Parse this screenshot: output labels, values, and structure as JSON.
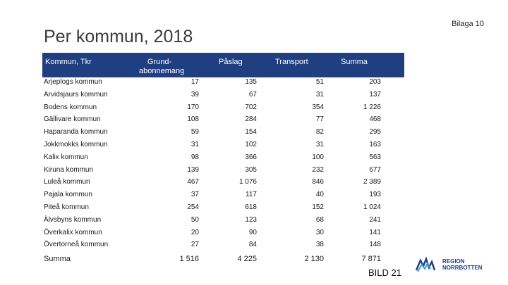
{
  "bilaga": "Bilaga 10",
  "title": "Per kommun, 2018",
  "headers": {
    "kommun": "Kommun, Tkr",
    "grund": "Grund-abonnemang",
    "paslag": "Påslag",
    "transport": "Transport",
    "summa": "Summa"
  },
  "rows": [
    {
      "name": "Arjeplogs kommun",
      "grund": "17",
      "paslag": "135",
      "transport": "51",
      "summa": "203"
    },
    {
      "name": "Arvidsjaurs kommun",
      "grund": "39",
      "paslag": "67",
      "transport": "31",
      "summa": "137"
    },
    {
      "name": "Bodens kommun",
      "grund": "170",
      "paslag": "702",
      "transport": "354",
      "summa": "1 226"
    },
    {
      "name": "Gällivare kommun",
      "grund": "108",
      "paslag": "284",
      "transport": "77",
      "summa": "468"
    },
    {
      "name": "Haparanda kommun",
      "grund": "59",
      "paslag": "154",
      "transport": "82",
      "summa": "295"
    },
    {
      "name": "Jokkmokks kommun",
      "grund": "31",
      "paslag": "102",
      "transport": "31",
      "summa": "163"
    },
    {
      "name": "Kalix kommun",
      "grund": "98",
      "paslag": "366",
      "transport": "100",
      "summa": "563"
    },
    {
      "name": "Kiruna kommun",
      "grund": "139",
      "paslag": "305",
      "transport": "232",
      "summa": "677"
    },
    {
      "name": "Luleå kommun",
      "grund": "467",
      "paslag": "1 076",
      "transport": "846",
      "summa": "2 389"
    },
    {
      "name": "Pajala kommun",
      "grund": "37",
      "paslag": "117",
      "transport": "40",
      "summa": "193"
    },
    {
      "name": "Piteå kommun",
      "grund": "254",
      "paslag": "618",
      "transport": "152",
      "summa": "1 024"
    },
    {
      "name": "Älvsbyns kommun",
      "grund": "50",
      "paslag": "123",
      "transport": "68",
      "summa": "241"
    },
    {
      "name": "Överkalix kommun",
      "grund": "20",
      "paslag": "90",
      "transport": "30",
      "summa": "141"
    },
    {
      "name": "Övertorneå kommun",
      "grund": "27",
      "paslag": "84",
      "transport": "38",
      "summa": "148"
    }
  ],
  "total": {
    "name": "Summa",
    "grund": "1 516",
    "paslag": "4 225",
    "transport": "2 130",
    "summa": "7 871"
  },
  "logo": {
    "line1": "REGION",
    "line2": "NORRBOTTEN",
    "color": "#1f3f80",
    "icon": "region-logo-icon"
  },
  "footer": "BILD 21"
}
